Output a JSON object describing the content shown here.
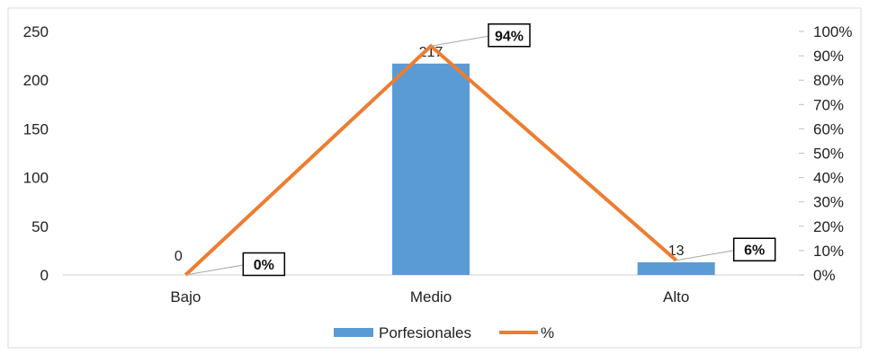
{
  "chart_data": {
    "type": "bar",
    "categories": [
      "Bajo",
      "Medio",
      "Alto"
    ],
    "series": [
      {
        "name": "Porfesionales",
        "type": "bar",
        "axis": "left",
        "values": [
          0,
          217,
          13
        ],
        "color": "#5B9BD5"
      },
      {
        "name": "%",
        "type": "line",
        "axis": "right",
        "values": [
          0,
          94,
          6
        ],
        "color": "#ED7D31"
      }
    ],
    "data_labels": {
      "bars": [
        "0",
        "217",
        "13"
      ],
      "percent": [
        "0%",
        "94%",
        "6%"
      ]
    },
    "y_left": {
      "ylim": [
        0,
        250
      ],
      "ticks": [
        "0",
        "50",
        "100",
        "150",
        "200",
        "250"
      ]
    },
    "y_right": {
      "ylim": [
        0,
        100
      ],
      "ticks": [
        "0%",
        "10%",
        "20%",
        "30%",
        "40%",
        "50%",
        "60%",
        "70%",
        "80%",
        "90%",
        "100%"
      ]
    },
    "grid": false,
    "legend_position": "bottom"
  }
}
